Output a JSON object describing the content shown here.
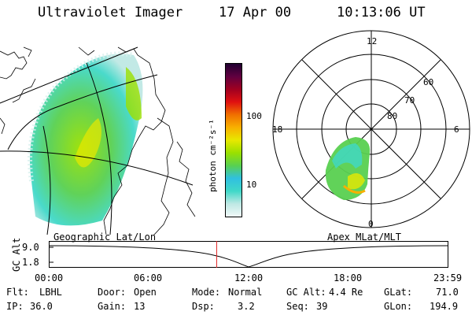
{
  "header": {
    "title": "Ultraviolet Imager",
    "date": "17 Apr 00",
    "time": "10:13:06 UT"
  },
  "colorbar": {
    "unit_label": "photon cm⁻²s⁻¹",
    "ticks": [
      "100",
      "10"
    ],
    "colors": [
      "#f0f8f8",
      "#bfe8e4",
      "#40d8c8",
      "#30c0e0",
      "#58d050",
      "#9ae000",
      "#e8e800",
      "#f8b000",
      "#f07000",
      "#e01010",
      "#a00020",
      "#600040",
      "#200030"
    ]
  },
  "polar_plot": {
    "mlt_labels": [
      "12",
      "18",
      "6",
      "0"
    ],
    "lat_labels": [
      "60",
      "70",
      "80"
    ],
    "caption": "Apex MLat/MLT"
  },
  "map_caption": "Geographic Lat/Lon",
  "altitude_track": {
    "ylabel": "GC Alt",
    "yticks": [
      "9.0",
      "1.8"
    ],
    "xticks": [
      "00:00",
      "06:00",
      "12:00",
      "18:00",
      "23:59"
    ],
    "current_time_fraction": 0.42
  },
  "info": {
    "flt_label": "Flt:",
    "flt_value": "LBHL",
    "ip_label": "IP:",
    "ip_value": "36.0",
    "door_label": "Door:",
    "door_value": "Open",
    "gain_label": "Gain:",
    "gain_value": "13",
    "mode_label": "Mode:",
    "mode_value": "Normal",
    "dsp_label": "Dsp:",
    "dsp_value": "3.2",
    "gcalt_label": "GC Alt:",
    "gcalt_value": "4.4 Re",
    "seq_label": "Seq:",
    "seq_value": "39",
    "glat_label": "GLat:",
    "glat_value": "71.0",
    "glon_label": "GLon:",
    "glon_value": "194.9"
  }
}
